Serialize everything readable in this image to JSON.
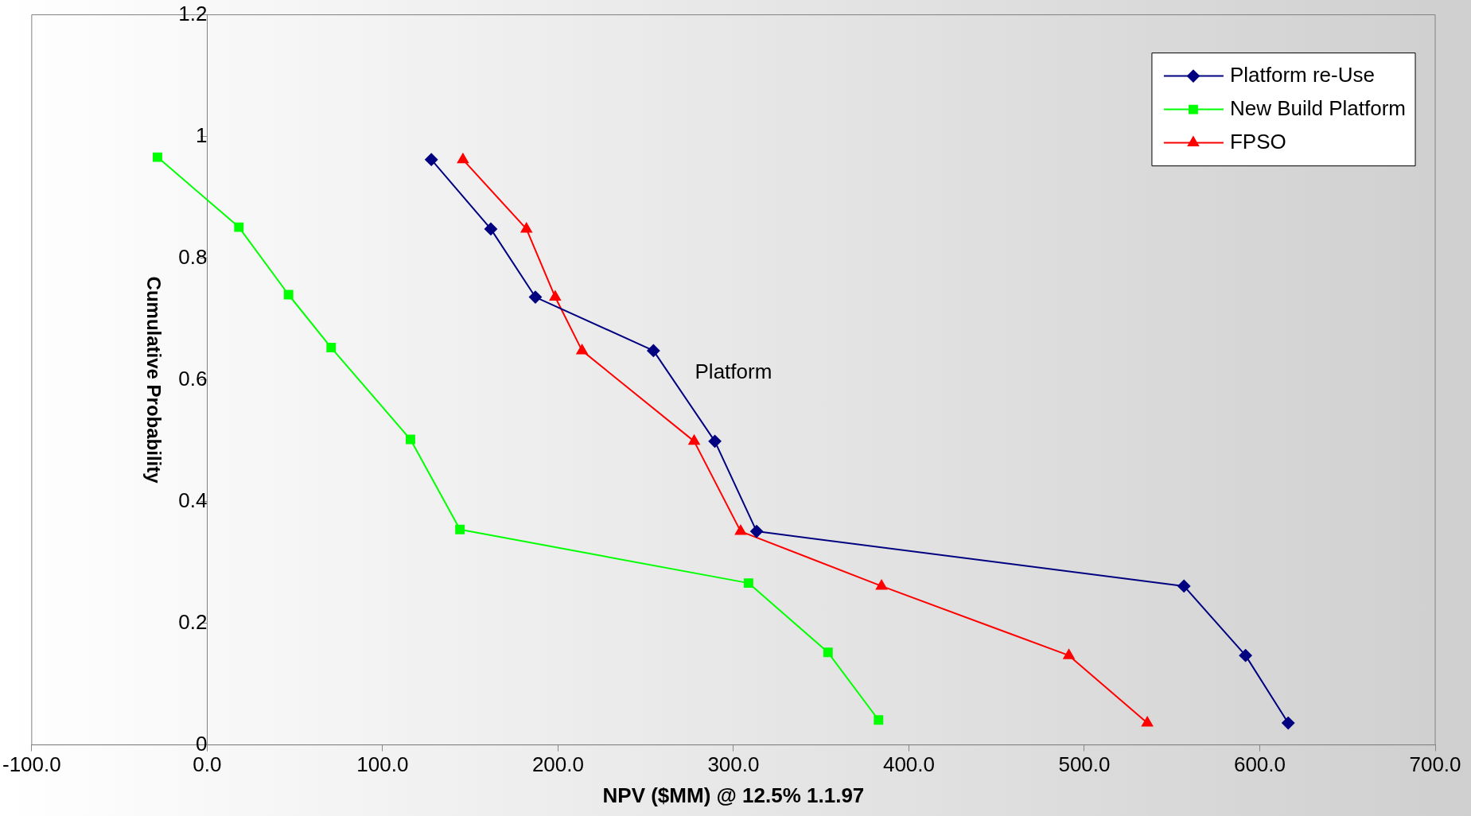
{
  "chart_data": {
    "type": "line",
    "xlabel": "NPV ($MM) @ 12.5% 1.1.97",
    "ylabel": "Cumulative Probability",
    "annotations": [
      "Platform"
    ],
    "series": [
      {
        "name": "Platform re-Use",
        "color": "#000080",
        "marker": "diamond",
        "x": [
          127.8,
          161.7,
          187.1,
          254.4,
          289.4,
          313.2,
          556.8,
          591.9,
          616.2
        ],
        "values": [
          0.962,
          0.848,
          0.736,
          0.648,
          0.499,
          0.351,
          0.261,
          0.147,
          0.036
        ]
      },
      {
        "name": "New Build Platform",
        "color": "#00ff00",
        "marker": "square",
        "x": [
          -28.3,
          18.1,
          46.4,
          70.7,
          115.9,
          144.1,
          308.6,
          353.9,
          382.7
        ],
        "values": [
          0.966,
          0.851,
          0.74,
          0.653,
          0.502,
          0.354,
          0.266,
          0.152,
          0.041
        ]
      },
      {
        "name": "FPSO",
        "color": "#ff0000",
        "marker": "triangle",
        "x": [
          145.8,
          182.0,
          198.4,
          213.7,
          277.6,
          304.1,
          384.4,
          491.2,
          535.9
        ],
        "values": [
          0.962,
          0.848,
          0.736,
          0.648,
          0.499,
          0.351,
          0.261,
          0.147,
          0.036
        ]
      }
    ],
    "xlim": [
      -100,
      700
    ],
    "xticks": [
      {
        "value": -100,
        "label": "-100.0"
      },
      {
        "value": 0,
        "label": "0.0"
      },
      {
        "value": 100,
        "label": "100.0"
      },
      {
        "value": 200,
        "label": "200.0"
      },
      {
        "value": 300,
        "label": "300.0"
      },
      {
        "value": 400,
        "label": "400.0"
      },
      {
        "value": 500,
        "label": "500.0"
      },
      {
        "value": 600,
        "label": "600.0"
      },
      {
        "value": 700,
        "label": "700.0"
      }
    ],
    "ylim": [
      0,
      1.2
    ],
    "yticks": [
      0,
      0.2,
      0.4,
      0.6,
      0.8,
      1,
      1.2
    ],
    "grid": false,
    "legend": "top right",
    "line_style": "solid"
  }
}
